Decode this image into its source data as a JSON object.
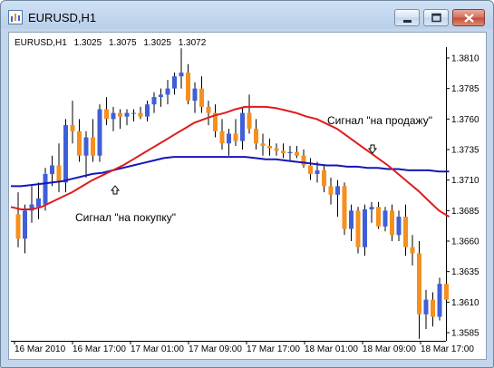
{
  "window": {
    "title": "EURUSD,H1",
    "accent": "#c4d6ec"
  },
  "chart_header": {
    "symbol": "EURUSD,H1",
    "open": "1.3025",
    "high": "1.3075",
    "low": "1.3025",
    "close": "1.3072"
  },
  "annotations": {
    "buy_signal": "Сигнал \"на покупку\"",
    "sell_signal": "Сигнал \"на продажу\""
  },
  "chart_data": {
    "type": "candlestick",
    "bull_color": "#3f5fd9",
    "bear_color": "#f5901e",
    "ma_fast_color": "#e01b1b",
    "ma_slow_color": "#1616b8",
    "ylim": [
      1.3575,
      1.383
    ],
    "y_ticks": [
      "1.3810",
      "1.3785",
      "1.3760",
      "1.3735",
      "1.3710",
      "1.3685",
      "1.3660",
      "1.3635",
      "1.3610",
      "1.3585"
    ],
    "x_ticks": [
      "16 Mar 2010",
      "16 Mar 17:00",
      "17 Mar 01:00",
      "17 Mar 09:00",
      "17 Mar 17:00",
      "18 Mar 01:00",
      "18 Mar 09:00",
      "18 Mar 17:00"
    ],
    "candles": [
      [
        1.3682,
        1.37,
        1.3655,
        1.3662
      ],
      [
        1.3662,
        1.369,
        1.365,
        1.3685
      ],
      [
        1.3685,
        1.3705,
        1.3675,
        1.369
      ],
      [
        1.3688,
        1.3708,
        1.3678,
        1.3695
      ],
      [
        1.369,
        1.372,
        1.3685,
        1.3715
      ],
      [
        1.3715,
        1.373,
        1.3705,
        1.3722
      ],
      [
        1.3722,
        1.374,
        1.37,
        1.3708
      ],
      [
        1.3708,
        1.376,
        1.37,
        1.3755
      ],
      [
        1.3755,
        1.3775,
        1.374,
        1.375
      ],
      [
        1.375,
        1.376,
        1.3725,
        1.373
      ],
      [
        1.373,
        1.375,
        1.3712,
        1.3745
      ],
      [
        1.3745,
        1.376,
        1.3725,
        1.373
      ],
      [
        1.373,
        1.3772,
        1.3725,
        1.3768
      ],
      [
        1.3768,
        1.3778,
        1.3755,
        1.376
      ],
      [
        1.376,
        1.377,
        1.375,
        1.3765
      ],
      [
        1.3765,
        1.3768,
        1.3752,
        1.3762
      ],
      [
        1.3762,
        1.3768,
        1.3755,
        1.3765
      ],
      [
        1.3765,
        1.3768,
        1.3758,
        1.3765
      ],
      [
        1.3765,
        1.377,
        1.376,
        1.3762
      ],
      [
        1.3762,
        1.3775,
        1.3758,
        1.3772
      ],
      [
        1.3772,
        1.3782,
        1.3765,
        1.3778
      ],
      [
        1.3778,
        1.3785,
        1.377,
        1.378
      ],
      [
        1.378,
        1.3792,
        1.3772,
        1.3785
      ],
      [
        1.3785,
        1.3798,
        1.378,
        1.3795
      ],
      [
        1.3795,
        1.3818,
        1.3785,
        1.3798
      ],
      [
        1.3798,
        1.3805,
        1.3772,
        1.3775
      ],
      [
        1.3775,
        1.379,
        1.3765,
        1.3785
      ],
      [
        1.3785,
        1.3795,
        1.3765,
        1.377
      ],
      [
        1.377,
        1.3775,
        1.3755,
        1.3765
      ],
      [
        1.3765,
        1.3772,
        1.3745,
        1.375
      ],
      [
        1.375,
        1.376,
        1.3735,
        1.374
      ],
      [
        1.374,
        1.3752,
        1.373,
        1.3748
      ],
      [
        1.3748,
        1.376,
        1.3738,
        1.3742
      ],
      [
        1.3742,
        1.377,
        1.3735,
        1.3765
      ],
      [
        1.3765,
        1.378,
        1.3748,
        1.3752
      ],
      [
        1.3752,
        1.376,
        1.3735,
        1.374
      ],
      [
        1.374,
        1.3748,
        1.373,
        1.3738
      ],
      [
        1.3738,
        1.3744,
        1.373,
        1.3736
      ],
      [
        1.3736,
        1.374,
        1.373,
        1.3734
      ],
      [
        1.3734,
        1.374,
        1.3728,
        1.3732
      ],
      [
        1.3732,
        1.3738,
        1.3726,
        1.3733
      ],
      [
        1.3733,
        1.3738,
        1.3728,
        1.373
      ],
      [
        1.373,
        1.3735,
        1.372,
        1.3722
      ],
      [
        1.3722,
        1.3728,
        1.371,
        1.3715
      ],
      [
        1.3715,
        1.3725,
        1.3708,
        1.3718
      ],
      [
        1.3718,
        1.3722,
        1.37,
        1.3705
      ],
      [
        1.3705,
        1.3712,
        1.369,
        1.3698
      ],
      [
        1.3698,
        1.371,
        1.368,
        1.3705
      ],
      [
        1.3705,
        1.3708,
        1.3665,
        1.367
      ],
      [
        1.367,
        1.369,
        1.366,
        1.3685
      ],
      [
        1.3685,
        1.3688,
        1.365,
        1.3655
      ],
      [
        1.3655,
        1.369,
        1.3648,
        1.3686
      ],
      [
        1.3686,
        1.3692,
        1.3675,
        1.3688
      ],
      [
        1.3688,
        1.3692,
        1.367,
        1.3672
      ],
      [
        1.3672,
        1.3688,
        1.3668,
        1.3685
      ],
      [
        1.3685,
        1.369,
        1.366,
        1.3665
      ],
      [
        1.3665,
        1.3685,
        1.366,
        1.368
      ],
      [
        1.368,
        1.369,
        1.3648,
        1.3655
      ],
      [
        1.3655,
        1.3665,
        1.364,
        1.365
      ],
      [
        1.365,
        1.366,
        1.358,
        1.36
      ],
      [
        1.36,
        1.362,
        1.3588,
        1.3612
      ],
      [
        1.3612,
        1.3618,
        1.359,
        1.3598
      ],
      [
        1.3598,
        1.363,
        1.3595,
        1.3625
      ],
      [
        1.3625,
        1.363,
        1.3608,
        1.3612
      ]
    ],
    "ma_fast": [
      1.3688,
      1.3686,
      1.3686,
      1.3688,
      1.3692,
      1.3696,
      1.37,
      1.3705,
      1.371,
      1.3714,
      1.3718,
      1.3722,
      1.3727,
      1.3732,
      1.3737,
      1.3742,
      1.3747,
      1.3752,
      1.3757,
      1.376,
      1.3763,
      1.3765,
      1.3768,
      1.377,
      1.377,
      1.377,
      1.3769,
      1.3767,
      1.3765,
      1.3762,
      1.376,
      1.3756,
      1.3752,
      1.3746,
      1.374,
      1.3734,
      1.3728,
      1.3722,
      1.3715,
      1.3708,
      1.3701,
      1.3693,
      1.3685,
      1.368
    ],
    "ma_slow": [
      1.3705,
      1.3705,
      1.3706,
      1.3707,
      1.3708,
      1.3709,
      1.3711,
      1.3713,
      1.3715,
      1.3716,
      1.3718,
      1.372,
      1.3722,
      1.3724,
      1.3726,
      1.3728,
      1.3729,
      1.3729,
      1.3729,
      1.3729,
      1.3729,
      1.3729,
      1.3729,
      1.3729,
      1.3728,
      1.3727,
      1.3727,
      1.3726,
      1.3725,
      1.3724,
      1.3723,
      1.3722,
      1.3722,
      1.3721,
      1.3721,
      1.372,
      1.372,
      1.3719,
      1.3719,
      1.3718,
      1.3718,
      1.3718,
      1.3717,
      1.3717
    ],
    "grid": false
  }
}
